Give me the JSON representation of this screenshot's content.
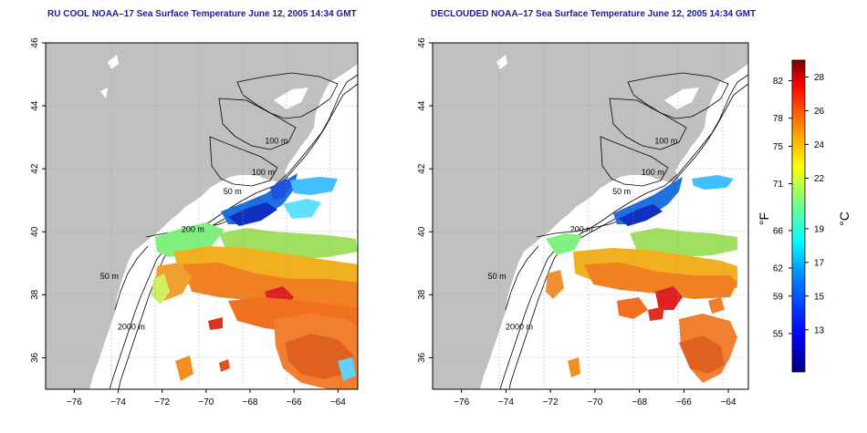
{
  "panels": [
    {
      "id": "left",
      "title": "RU COOL NOAA–17 Sea Surface Temperature June 12, 2005 14:34 GMT"
    },
    {
      "id": "right",
      "title": "DECLOUDED NOAA–17 Sea Surface Temperature June 12, 2005 14:34 GMT"
    }
  ],
  "map": {
    "lon_range": [
      -77.3,
      -63
    ],
    "lat_range": [
      35,
      46
    ],
    "lon_ticks": [
      -76,
      -74,
      -72,
      -70,
      -68,
      -66,
      -64
    ],
    "lat_ticks": [
      36,
      38,
      40,
      42,
      44,
      46
    ],
    "lon_tick_labels": [
      "−76",
      "−74",
      "−72",
      "−70",
      "−68",
      "−66",
      "−64"
    ],
    "lat_tick_labels": [
      "36",
      "38",
      "40",
      "42",
      "44",
      "46"
    ],
    "land_color": "#c0c0c0",
    "grid": "dotted",
    "contour_labels": [
      {
        "text": "100 m",
        "lon": -66.8,
        "lat": 42.8
      },
      {
        "text": "100 m",
        "lon": -67.4,
        "lat": 41.8
      },
      {
        "text": "50 m",
        "lon": -68.8,
        "lat": 41.2
      },
      {
        "text": "200 m",
        "lon": -70.6,
        "lat": 40.0
      },
      {
        "text": "50 m",
        "lon": -74.4,
        "lat": 38.5
      },
      {
        "text": "2000 m",
        "lon": -73.4,
        "lat": 36.9
      }
    ]
  },
  "colorbar": {
    "fahrenheit_unit": "°F",
    "celsius_unit": "°C",
    "range_c": [
      10.5,
      29
    ],
    "fahrenheit_ticks": [
      "82",
      "78",
      "75",
      "71",
      "66",
      "62",
      "59",
      "55"
    ],
    "celsius_ticks": [
      "28",
      "26",
      "24",
      "22",
      "19",
      "17",
      "15",
      "13"
    ],
    "colors": [
      "#00007f",
      "#0000ff",
      "#007fff",
      "#00ffff",
      "#7fff7f",
      "#ffff00",
      "#ff7f00",
      "#ff0000",
      "#7f0000"
    ]
  }
}
